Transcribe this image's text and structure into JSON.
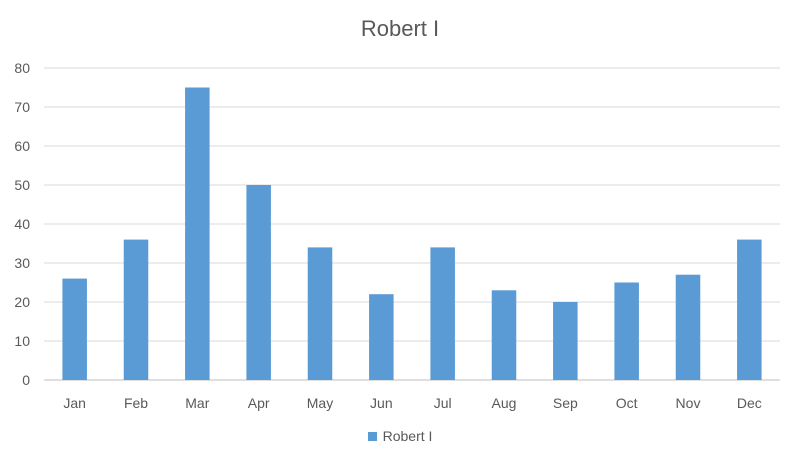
{
  "chart_data": {
    "type": "bar",
    "title": "Robert I",
    "categories": [
      "Jan",
      "Feb",
      "Mar",
      "Apr",
      "May",
      "Jun",
      "Jul",
      "Aug",
      "Sep",
      "Oct",
      "Nov",
      "Dec"
    ],
    "series": [
      {
        "name": "Robert I",
        "values": [
          26,
          36,
          75,
          50,
          34,
          22,
          34,
          23,
          20,
          25,
          27,
          36
        ],
        "color": "#5B9BD5"
      }
    ],
    "ylim": [
      0,
      80
    ],
    "yticks": [
      0,
      10,
      20,
      30,
      40,
      50,
      60,
      70,
      80
    ],
    "grid": true,
    "legend": "bottom",
    "colors": {
      "text": "#595959",
      "grid": "#d9d9d9",
      "axis": "#bfbfbf"
    }
  }
}
